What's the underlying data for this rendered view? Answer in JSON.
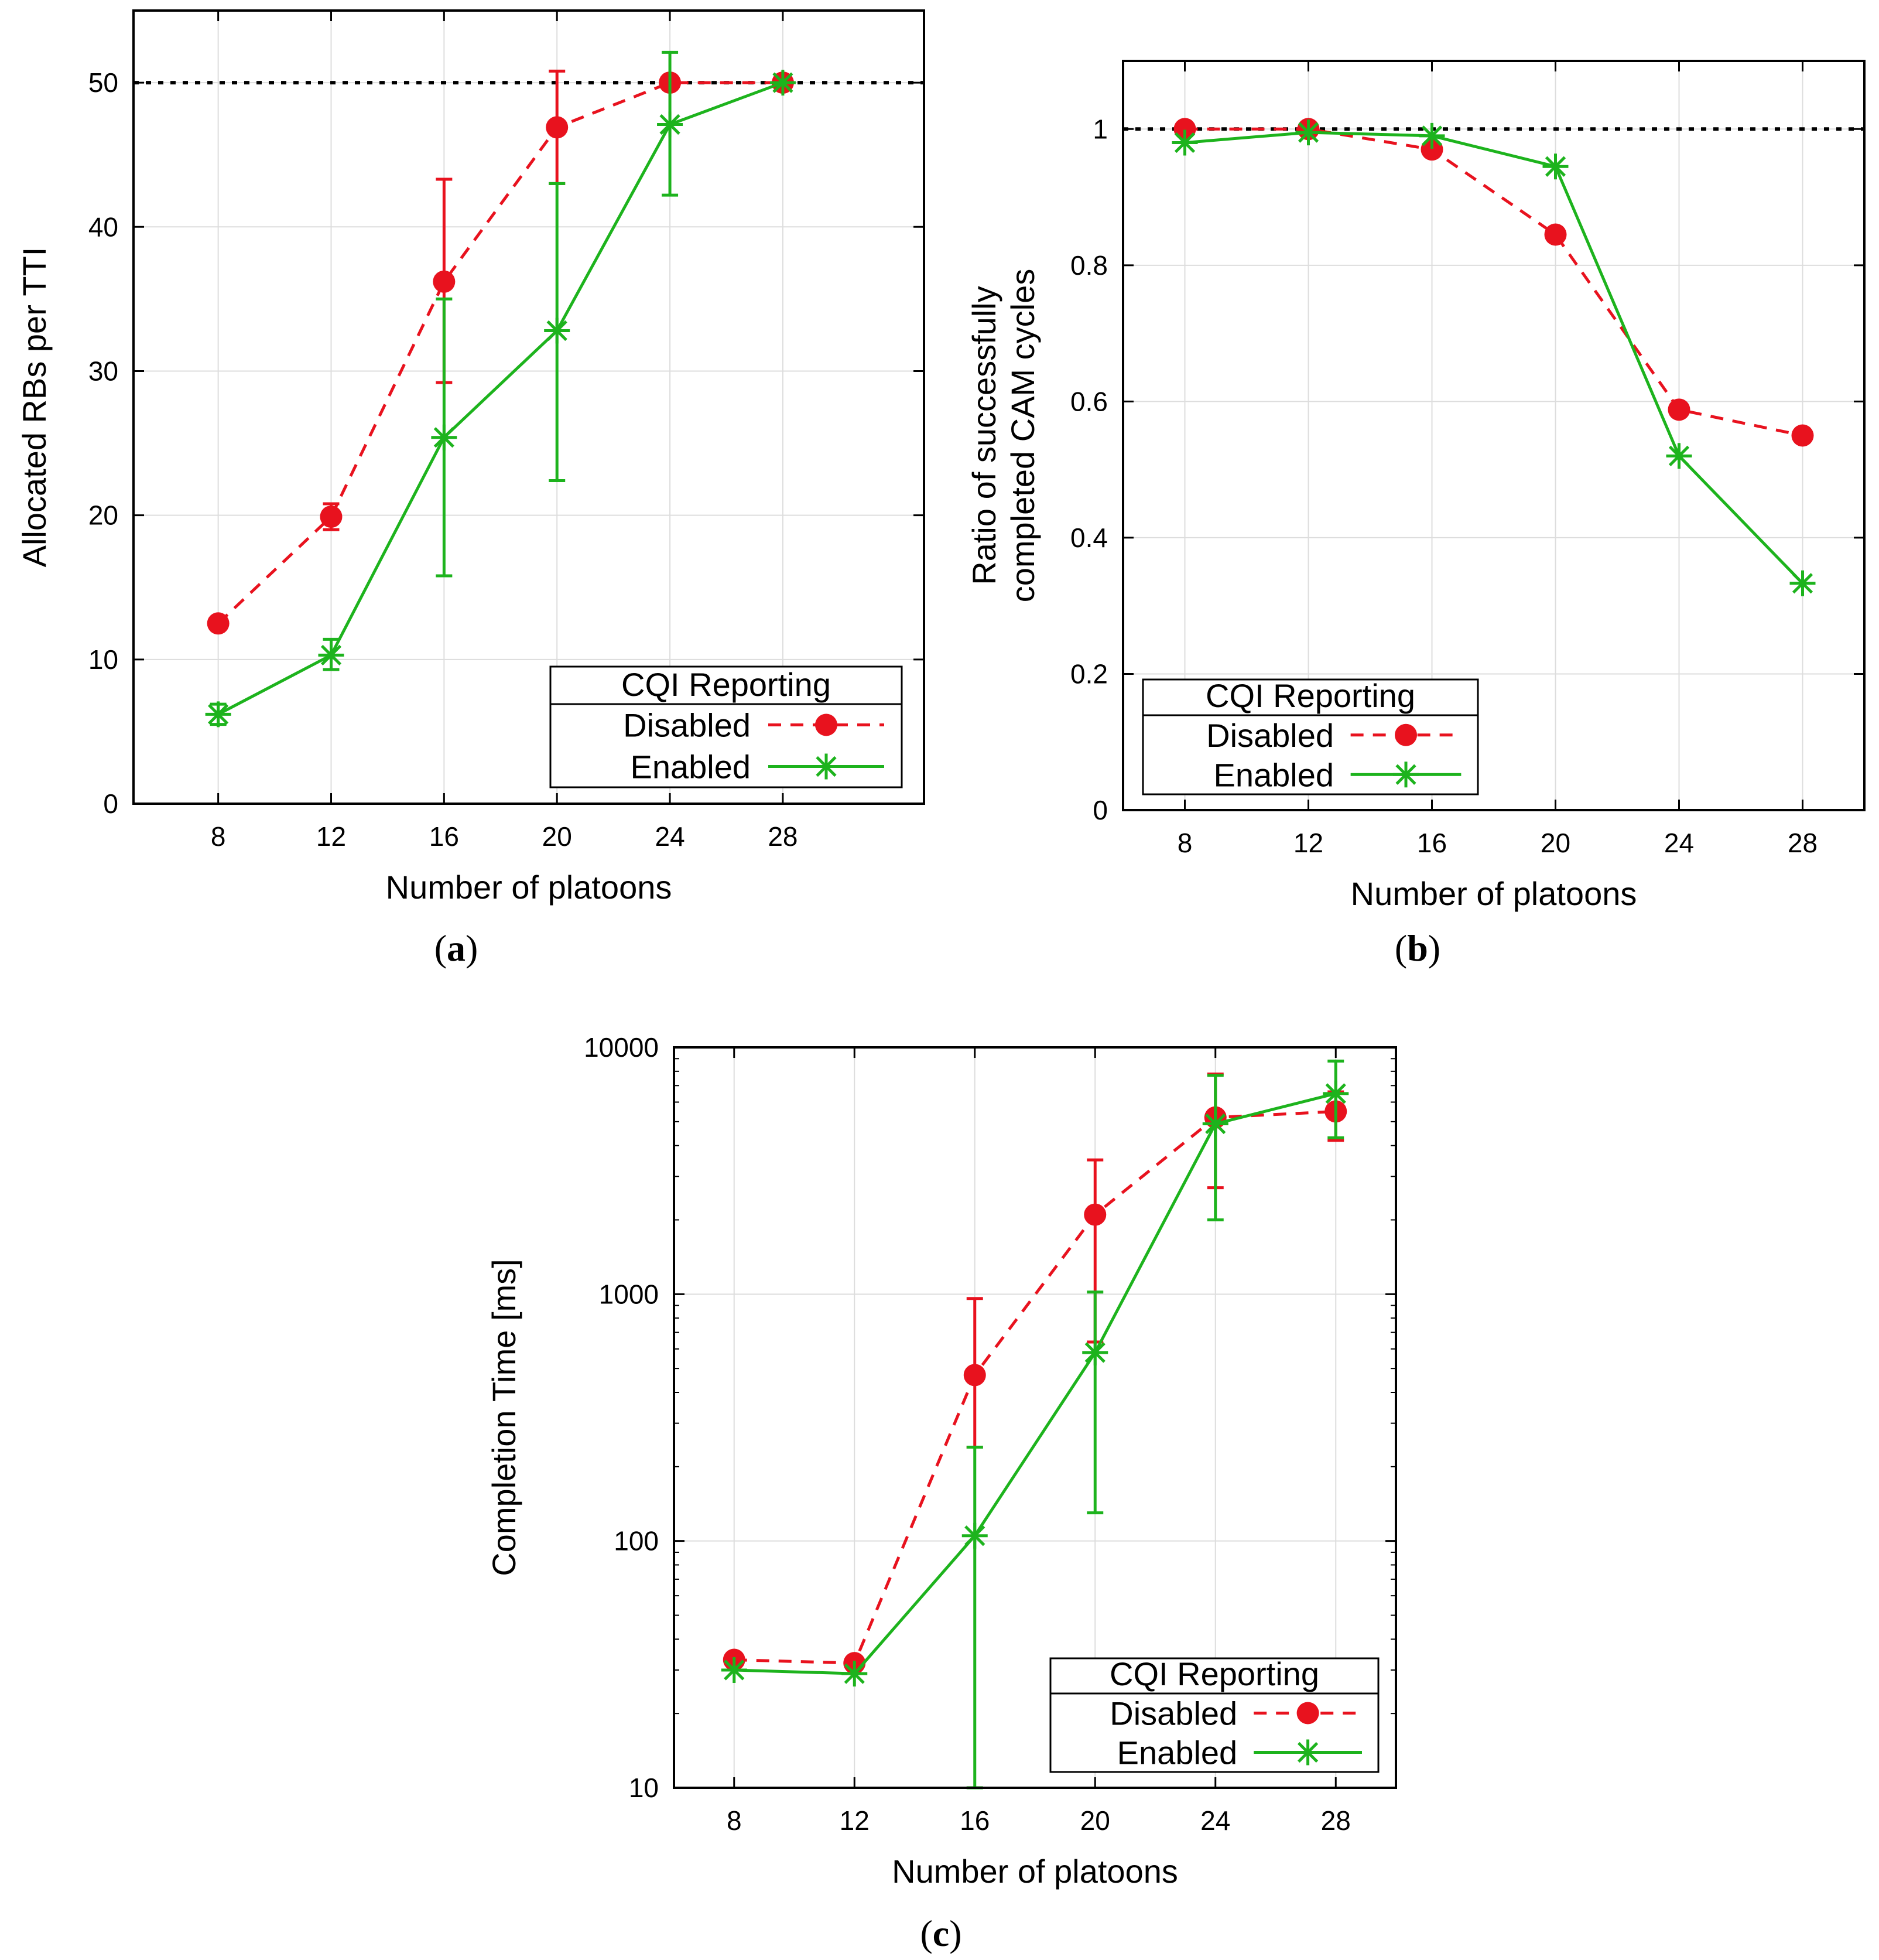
{
  "figure": {
    "background": "#ffffff",
    "colors": {
      "disabled": "#e8121e",
      "enabled": "#1db31d",
      "grid": "#dddddd",
      "reference": "#000000"
    }
  },
  "chart_data": [
    {
      "id": "a",
      "type": "line",
      "panel_label": "a",
      "title": "",
      "xlabel": "Number of platoons",
      "ylabel": "Allocated RBs per TTI",
      "x": [
        8,
        12,
        16,
        20,
        24,
        28
      ],
      "x_ticks": [
        8,
        12,
        16,
        20,
        24,
        28
      ],
      "xlim": [
        5,
        33
      ],
      "y_scale": "linear",
      "ylim": [
        0,
        55
      ],
      "y_ticks": [
        0,
        10,
        20,
        30,
        40,
        50
      ],
      "grid": true,
      "reference_line": {
        "y": 50,
        "style": "dotted"
      },
      "legend": {
        "title": "CQI Reporting",
        "position": "bottom-right"
      },
      "series": [
        {
          "name": "Disabled",
          "style": "dashed",
          "marker": "circle",
          "values": [
            12.5,
            19.9,
            36.2,
            46.9,
            50,
            50
          ],
          "error_low": [
            12.5,
            19.0,
            29.2,
            43.0,
            50,
            50
          ],
          "error_high": [
            12.5,
            20.8,
            43.3,
            50.8,
            50,
            50
          ]
        },
        {
          "name": "Enabled",
          "style": "solid",
          "marker": "star",
          "values": [
            6.2,
            10.3,
            25.4,
            32.8,
            47.1,
            50
          ],
          "error_low": [
            5.5,
            9.3,
            15.8,
            22.4,
            42.2,
            50
          ],
          "error_high": [
            6.9,
            11.4,
            35.0,
            43.0,
            52.1,
            50
          ]
        }
      ]
    },
    {
      "id": "b",
      "type": "line",
      "panel_label": "b",
      "title": "",
      "xlabel": "Number of platoons",
      "ylabel_lines": [
        "Ratio of successfully",
        "completed CAM cycles"
      ],
      "x": [
        8,
        12,
        16,
        20,
        24,
        28
      ],
      "x_ticks": [
        8,
        12,
        16,
        20,
        24,
        28
      ],
      "xlim": [
        6,
        30
      ],
      "y_scale": "linear",
      "ylim": [
        0,
        1.1
      ],
      "y_ticks": [
        "0",
        "0.2",
        "0.4",
        "0.6",
        "0.8",
        "1"
      ],
      "grid": true,
      "reference_line": {
        "y": 1,
        "style": "dotted"
      },
      "legend": {
        "title": "CQI Reporting",
        "position": "bottom-left"
      },
      "series": [
        {
          "name": "Disabled",
          "style": "dashed",
          "marker": "circle",
          "values": [
            1.0,
            1.0,
            0.97,
            0.845,
            0.588,
            0.55
          ]
        },
        {
          "name": "Enabled",
          "style": "solid",
          "marker": "star",
          "values": [
            0.98,
            0.995,
            0.99,
            0.945,
            0.52,
            0.333
          ]
        }
      ]
    },
    {
      "id": "c",
      "type": "line",
      "panel_label": "c",
      "title": "",
      "xlabel": "Number of platoons",
      "ylabel": "Completion Time [ms]",
      "x": [
        8,
        12,
        16,
        20,
        24,
        28
      ],
      "x_ticks": [
        8,
        12,
        16,
        20,
        24,
        28
      ],
      "xlim": [
        6,
        30
      ],
      "y_scale": "log",
      "ylim": [
        10,
        10000
      ],
      "y_ticks": [
        10,
        100,
        1000,
        10000
      ],
      "grid": true,
      "legend": {
        "title": "CQI Reporting",
        "position": "bottom-right"
      },
      "series": [
        {
          "name": "Disabled",
          "style": "dashed",
          "marker": "circle",
          "values": [
            33,
            32,
            470,
            2100,
            5200,
            5500
          ],
          "error_low": [
            33,
            32,
            240,
            640,
            2700,
            4200
          ],
          "error_high": [
            33,
            32,
            960,
            3500,
            7800,
            6600
          ]
        },
        {
          "name": "Enabled",
          "style": "solid",
          "marker": "star",
          "values": [
            30,
            29,
            105,
            580,
            4900,
            6500
          ],
          "error_low": [
            30,
            29,
            10,
            130,
            2000,
            4300
          ],
          "error_high": [
            30,
            29,
            240,
            1020,
            7700,
            8800
          ]
        }
      ]
    }
  ]
}
